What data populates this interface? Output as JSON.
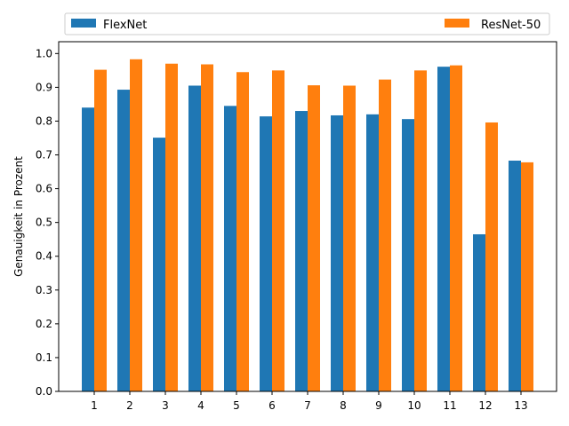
{
  "chart_data": {
    "type": "bar",
    "title": "",
    "xlabel": "",
    "ylabel": "Genauigkeit in Prozent",
    "categories": [
      "1",
      "2",
      "3",
      "4",
      "5",
      "6",
      "7",
      "8",
      "9",
      "10",
      "11",
      "12",
      "13"
    ],
    "ylim": [
      0,
      1.035
    ],
    "yticks": [
      "0.0",
      "0.1",
      "0.2",
      "0.3",
      "0.4",
      "0.5",
      "0.6",
      "0.7",
      "0.8",
      "0.9",
      "1.0"
    ],
    "legend_position": "top, spanning full width",
    "series": [
      {
        "name": "FlexNet",
        "color": "#1f77b4",
        "values": [
          0.84,
          0.893,
          0.751,
          0.905,
          0.845,
          0.814,
          0.83,
          0.817,
          0.82,
          0.806,
          0.961,
          0.465,
          0.683
        ]
      },
      {
        "name": "ResNet-50",
        "color": "#ff7f0e",
        "values": [
          0.952,
          0.983,
          0.97,
          0.968,
          0.945,
          0.95,
          0.906,
          0.905,
          0.923,
          0.95,
          0.965,
          0.796,
          0.678
        ]
      }
    ]
  }
}
